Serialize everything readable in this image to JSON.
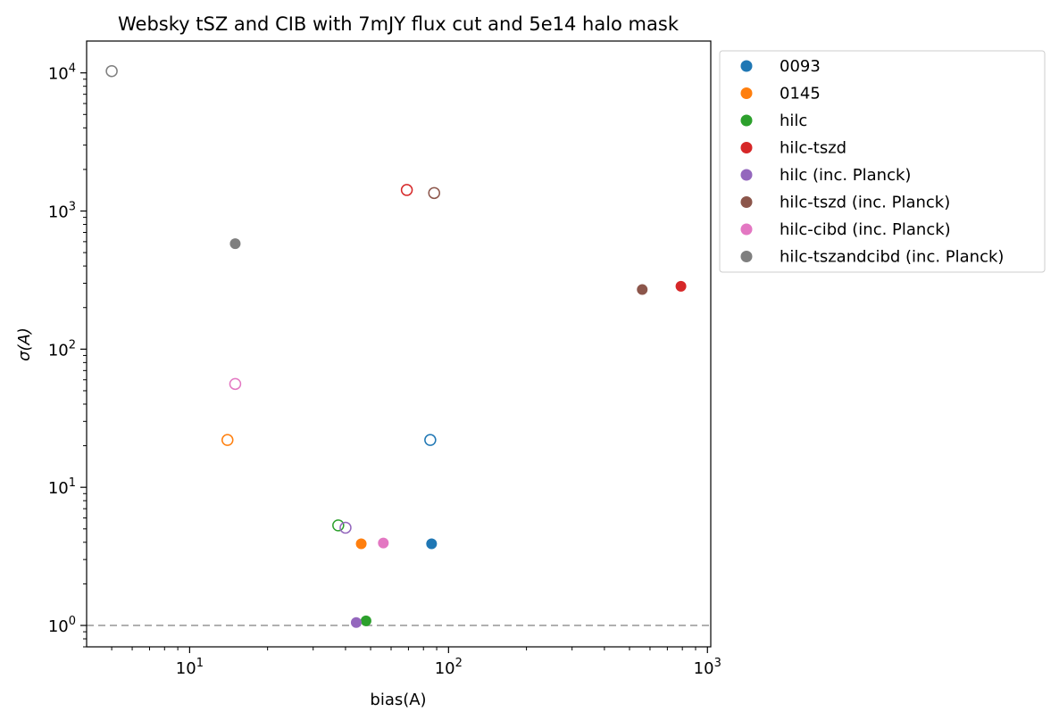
{
  "chart_data": {
    "type": "scatter",
    "title": "Websky tSZ and CIB with 7mJY flux cut and 5e14 halo mask",
    "xlabel": "bias(A)",
    "ylabel": "σ(A)",
    "xscale": "log",
    "yscale": "log",
    "xlim": [
      4.0,
      1030
    ],
    "ylim": [
      0.7,
      17000
    ],
    "xticks": [
      {
        "value": 10,
        "base": "10",
        "exp": "1"
      },
      {
        "value": 100,
        "base": "10",
        "exp": "2"
      },
      {
        "value": 1000,
        "base": "10",
        "exp": "3"
      }
    ],
    "yticks": [
      {
        "value": 1,
        "base": "10",
        "exp": "0"
      },
      {
        "value": 10,
        "base": "10",
        "exp": "1"
      },
      {
        "value": 100,
        "base": "10",
        "exp": "2"
      },
      {
        "value": 1000,
        "base": "10",
        "exp": "3"
      },
      {
        "value": 10000,
        "base": "10",
        "exp": "4"
      }
    ],
    "reference_line": {
      "y": 1,
      "style": "dashed",
      "color": "#b0b0b0"
    },
    "legend_position": "outside-right-top",
    "series": [
      {
        "name": "0093",
        "color": "#1f77b4",
        "filled": {
          "x": 86,
          "y": 3.9
        },
        "hollow": {
          "x": 85,
          "y": 22
        }
      },
      {
        "name": "0145",
        "color": "#ff7f0e",
        "filled": {
          "x": 46,
          "y": 3.9
        },
        "hollow": {
          "x": 14,
          "y": 22
        }
      },
      {
        "name": "hilc",
        "color": "#2ca02c",
        "filled": {
          "x": 48,
          "y": 1.08
        },
        "hollow": {
          "x": 37.5,
          "y": 5.3
        }
      },
      {
        "name": "hilc-tszd",
        "color": "#d62728",
        "filled": {
          "x": 790,
          "y": 285
        },
        "hollow": {
          "x": 69,
          "y": 1420
        }
      },
      {
        "name": "hilc (inc. Planck)",
        "color": "#9467bd",
        "filled": {
          "x": 44,
          "y": 1.05
        },
        "hollow": {
          "x": 40,
          "y": 5.1
        }
      },
      {
        "name": "hilc-tszd (inc. Planck)",
        "color": "#8c564b",
        "filled": {
          "x": 560,
          "y": 270
        },
        "hollow": {
          "x": 88,
          "y": 1350
        }
      },
      {
        "name": "hilc-cibd (inc. Planck)",
        "color": "#e377c2",
        "filled": {
          "x": 56,
          "y": 3.95
        },
        "hollow": {
          "x": 15,
          "y": 56
        }
      },
      {
        "name": "hilc-tszandcibd (inc. Planck)",
        "color": "#7f7f7f",
        "filled": {
          "x": 15,
          "y": 580
        },
        "hollow": {
          "x": 5.0,
          "y": 10300
        }
      }
    ]
  }
}
